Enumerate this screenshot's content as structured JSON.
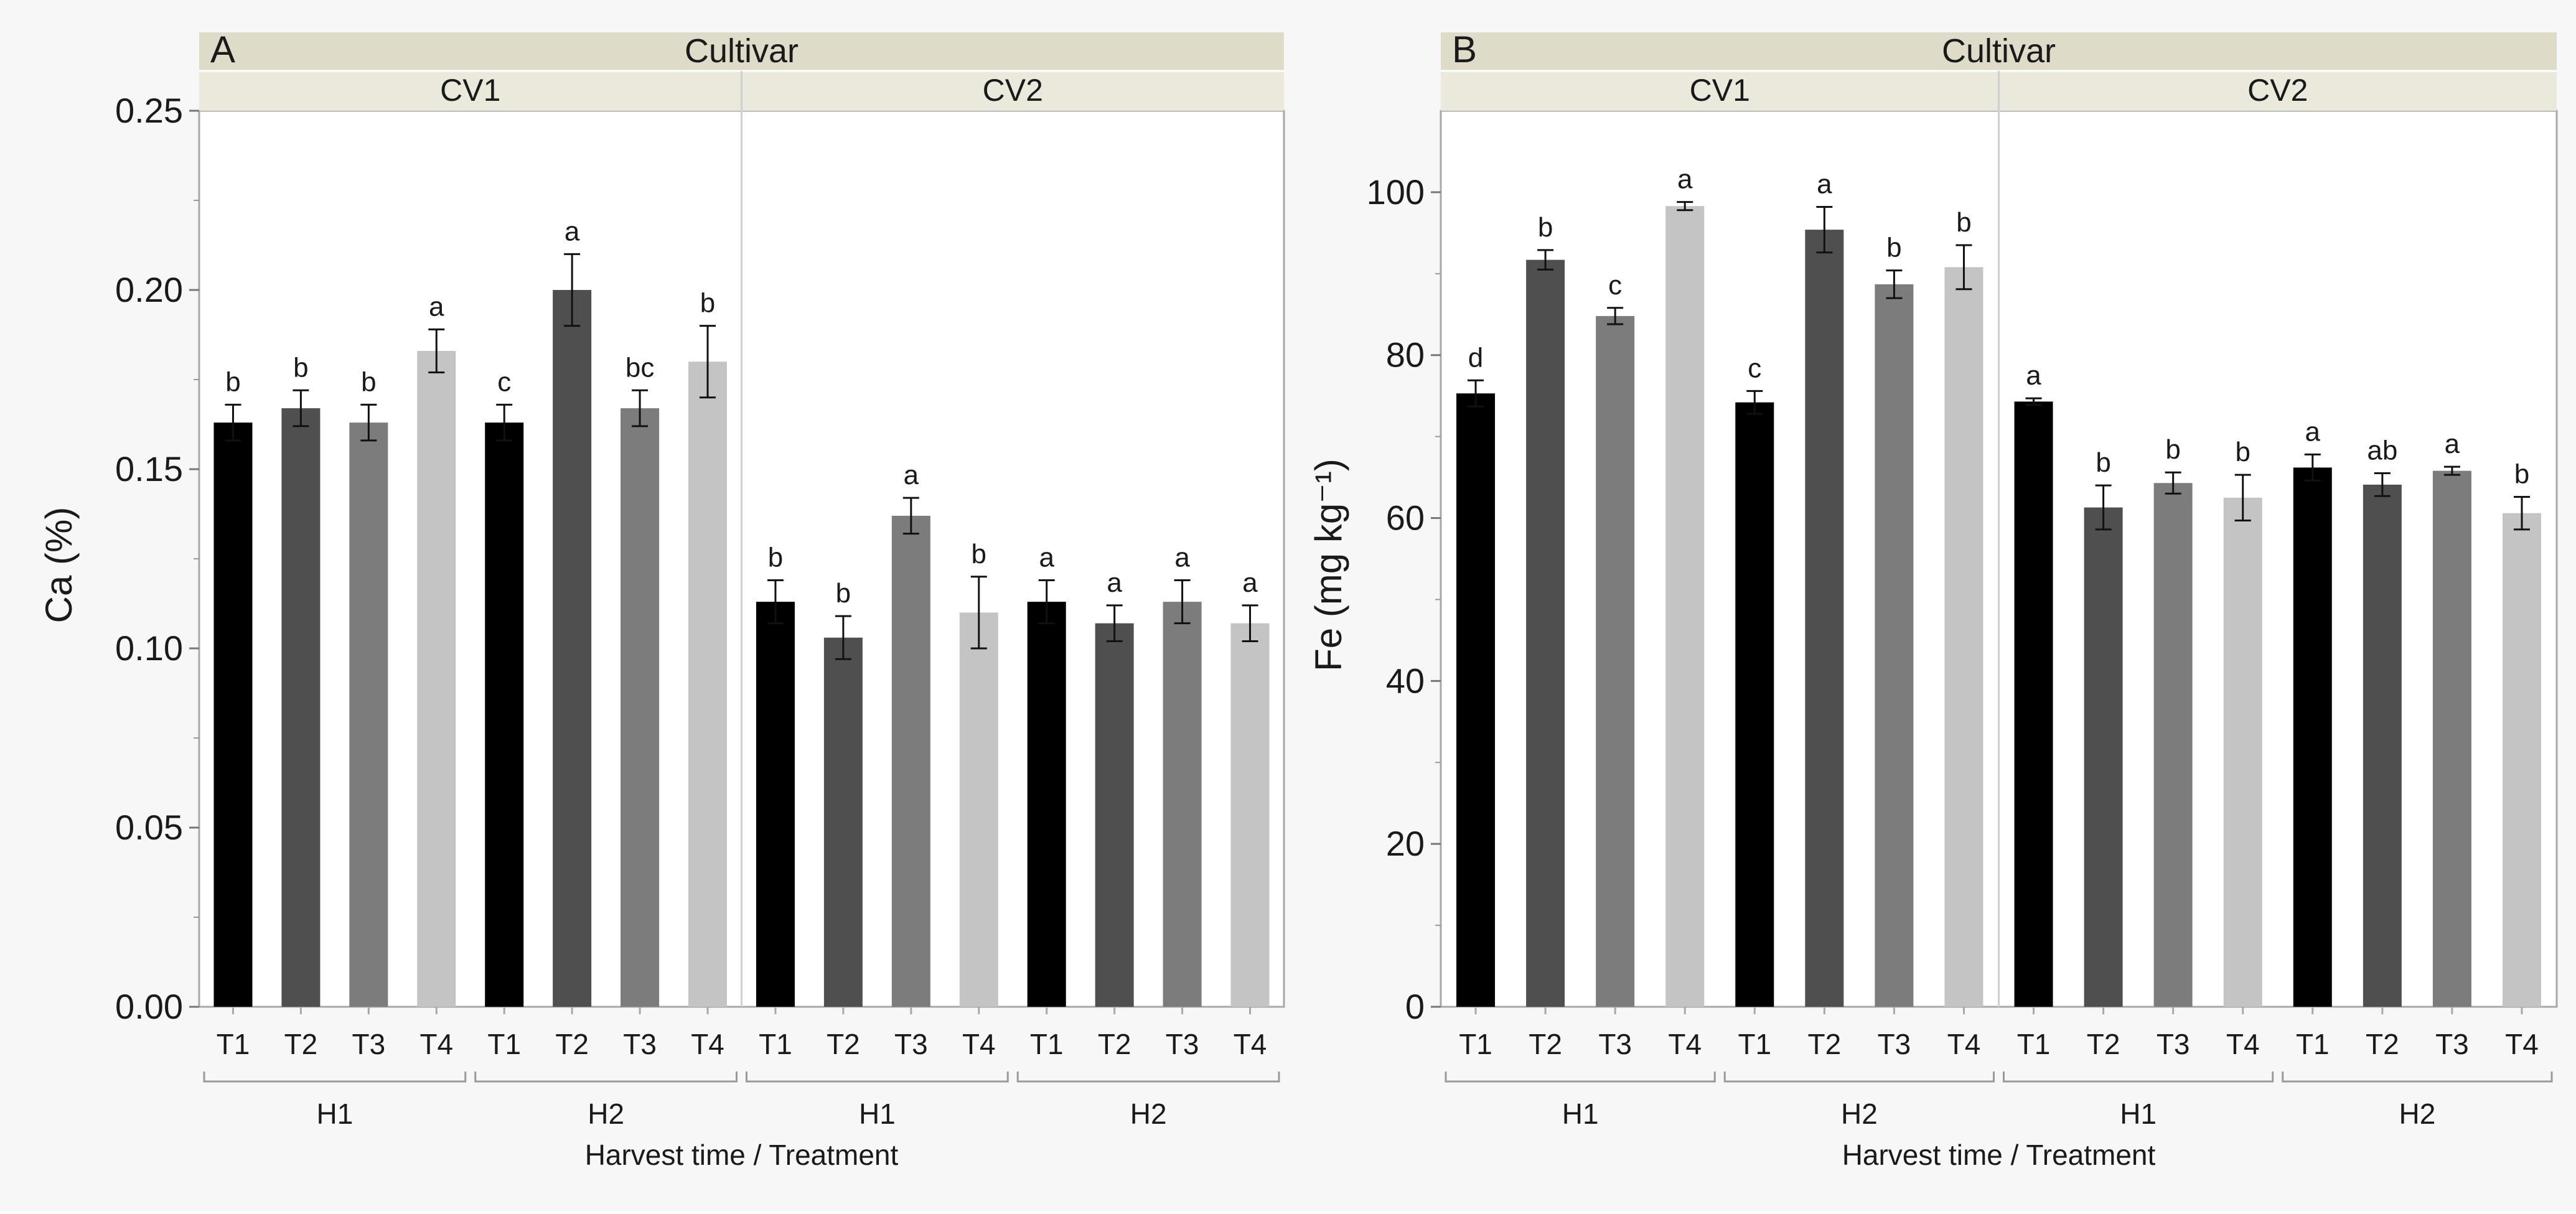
{
  "colors": {
    "T1": "#000000",
    "T2": "#4f4f4f",
    "T3": "#7c7c7c",
    "T4": "#c4c4c4",
    "strip": "#dedbc9",
    "frame": "#a8a8a8",
    "panel_bg": "#ffffff",
    "outer_bg": "#f7f7f7"
  },
  "chart_data": [
    {
      "type": "bar",
      "panel": "A",
      "title": "Cultivar",
      "ylabel": "Ca (%)",
      "xlabel": "Harvest time / Treatment",
      "ylim": [
        0,
        0.25
      ],
      "yticks": [
        "0.00",
        "0.05",
        "0.10",
        "0.15",
        "0.20",
        "0.25"
      ],
      "cultivars": [
        {
          "name": "CV1",
          "harvests": [
            {
              "name": "H1",
              "bars": [
                {
                  "treatment": "T1",
                  "value": 0.163,
                  "error": 0.005,
                  "letter": "b"
                },
                {
                  "treatment": "T2",
                  "value": 0.167,
                  "error": 0.005,
                  "letter": "b"
                },
                {
                  "treatment": "T3",
                  "value": 0.163,
                  "error": 0.005,
                  "letter": "b"
                },
                {
                  "treatment": "T4",
                  "value": 0.183,
                  "error": 0.006,
                  "letter": "a"
                }
              ]
            },
            {
              "name": "H2",
              "bars": [
                {
                  "treatment": "T1",
                  "value": 0.163,
                  "error": 0.005,
                  "letter": "c"
                },
                {
                  "treatment": "T2",
                  "value": 0.2,
                  "error": 0.01,
                  "letter": "a"
                },
                {
                  "treatment": "T3",
                  "value": 0.167,
                  "error": 0.005,
                  "letter": "bc"
                },
                {
                  "treatment": "T4",
                  "value": 0.18,
                  "error": 0.01,
                  "letter": "b"
                }
              ]
            }
          ]
        },
        {
          "name": "CV2",
          "harvests": [
            {
              "name": "H1",
              "bars": [
                {
                  "treatment": "T1",
                  "value": 0.113,
                  "error": 0.006,
                  "letter": "b"
                },
                {
                  "treatment": "T2",
                  "value": 0.103,
                  "error": 0.006,
                  "letter": "b"
                },
                {
                  "treatment": "T3",
                  "value": 0.137,
                  "error": 0.005,
                  "letter": "a"
                },
                {
                  "treatment": "T4",
                  "value": 0.11,
                  "error": 0.01,
                  "letter": "b"
                }
              ]
            },
            {
              "name": "H2",
              "bars": [
                {
                  "treatment": "T1",
                  "value": 0.113,
                  "error": 0.006,
                  "letter": "a"
                },
                {
                  "treatment": "T2",
                  "value": 0.107,
                  "error": 0.005,
                  "letter": "a"
                },
                {
                  "treatment": "T3",
                  "value": 0.113,
                  "error": 0.006,
                  "letter": "a"
                },
                {
                  "treatment": "T4",
                  "value": 0.107,
                  "error": 0.005,
                  "letter": "a"
                }
              ]
            }
          ]
        }
      ]
    },
    {
      "type": "bar",
      "panel": "B",
      "title": "Cultivar",
      "ylabel": "Fe (mg kg⁻¹)",
      "xlabel": "Harvest time / Treatment",
      "ylim": [
        0,
        110
      ],
      "yticks": [
        "0",
        "20",
        "40",
        "60",
        "80",
        "100"
      ],
      "cultivars": [
        {
          "name": "CV1",
          "harvests": [
            {
              "name": "H1",
              "bars": [
                {
                  "treatment": "T1",
                  "value": 75.3,
                  "error": 1.6,
                  "letter": "d"
                },
                {
                  "treatment": "T2",
                  "value": 91.7,
                  "error": 1.2,
                  "letter": "b"
                },
                {
                  "treatment": "T3",
                  "value": 84.8,
                  "error": 1.0,
                  "letter": "c"
                },
                {
                  "treatment": "T4",
                  "value": 98.3,
                  "error": 0.5,
                  "letter": "a"
                }
              ]
            },
            {
              "name": "H2",
              "bars": [
                {
                  "treatment": "T1",
                  "value": 74.2,
                  "error": 1.4,
                  "letter": "c"
                },
                {
                  "treatment": "T2",
                  "value": 95.4,
                  "error": 2.8,
                  "letter": "a"
                },
                {
                  "treatment": "T3",
                  "value": 88.7,
                  "error": 1.7,
                  "letter": "b"
                },
                {
                  "treatment": "T4",
                  "value": 90.8,
                  "error": 2.7,
                  "letter": "b"
                }
              ]
            }
          ]
        },
        {
          "name": "CV2",
          "harvests": [
            {
              "name": "H1",
              "bars": [
                {
                  "treatment": "T1",
                  "value": 74.3,
                  "error": 0.4,
                  "letter": "a"
                },
                {
                  "treatment": "T2",
                  "value": 61.3,
                  "error": 2.7,
                  "letter": "b"
                },
                {
                  "treatment": "T3",
                  "value": 64.3,
                  "error": 1.3,
                  "letter": "b"
                },
                {
                  "treatment": "T4",
                  "value": 62.5,
                  "error": 2.8,
                  "letter": "b"
                }
              ]
            },
            {
              "name": "H2",
              "bars": [
                {
                  "treatment": "T1",
                  "value": 66.2,
                  "error": 1.6,
                  "letter": "a"
                },
                {
                  "treatment": "T2",
                  "value": 64.1,
                  "error": 1.4,
                  "letter": "ab"
                },
                {
                  "treatment": "T3",
                  "value": 65.8,
                  "error": 0.5,
                  "letter": "a"
                },
                {
                  "treatment": "T4",
                  "value": 60.6,
                  "error": 2.0,
                  "letter": "b"
                }
              ]
            }
          ]
        }
      ]
    }
  ]
}
